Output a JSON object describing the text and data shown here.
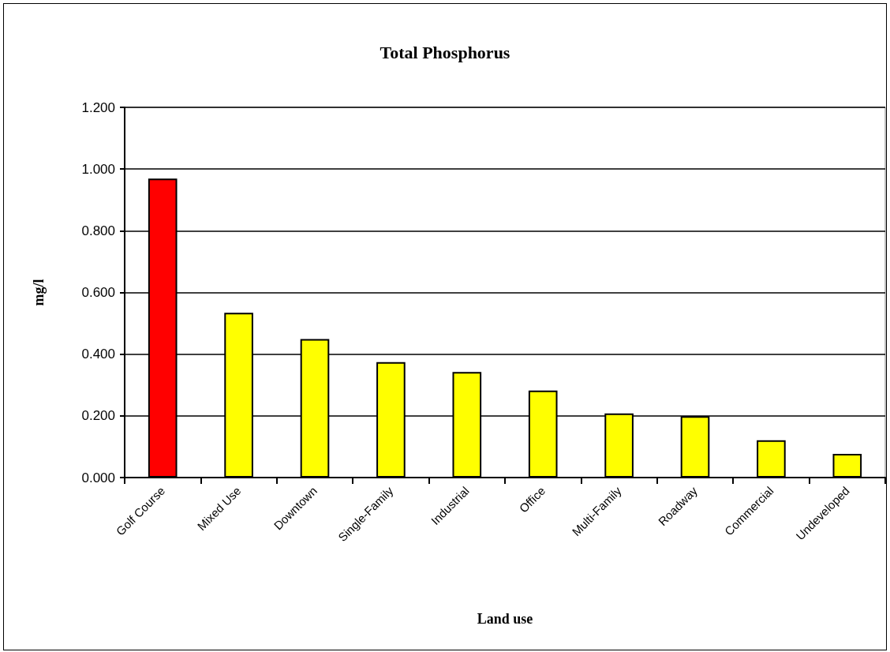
{
  "chart_data": {
    "type": "bar",
    "title": "Total Phosphorus",
    "xlabel": "Land use",
    "ylabel": "mg/l",
    "categories": [
      "Golf Course",
      "Mixed Use",
      "Downtown",
      "Single-Family",
      "Industrial",
      "Office",
      "Multi-Family",
      "Roadway",
      "Commercial",
      "Undeveloped"
    ],
    "values": [
      0.969,
      0.534,
      0.449,
      0.374,
      0.342,
      0.282,
      0.208,
      0.199,
      0.121,
      0.077
    ],
    "colors": [
      "#ff0000",
      "#ffff00",
      "#ffff00",
      "#ffff00",
      "#ffff00",
      "#ffff00",
      "#ffff00",
      "#ffff00",
      "#ffff00",
      "#ffff00"
    ],
    "ylim": [
      0,
      1.2
    ],
    "yticks": [
      {
        "value": 0,
        "label": "0.000"
      },
      {
        "value": 0.2,
        "label": "0.200"
      },
      {
        "value": 0.4,
        "label": "0.400"
      },
      {
        "value": 0.6,
        "label": "0.600"
      },
      {
        "value": 0.8,
        "label": "0.800"
      },
      {
        "value": 1.0,
        "label": "1.000"
      },
      {
        "value": 1.2,
        "label": "1.200"
      }
    ],
    "grid": "y"
  }
}
